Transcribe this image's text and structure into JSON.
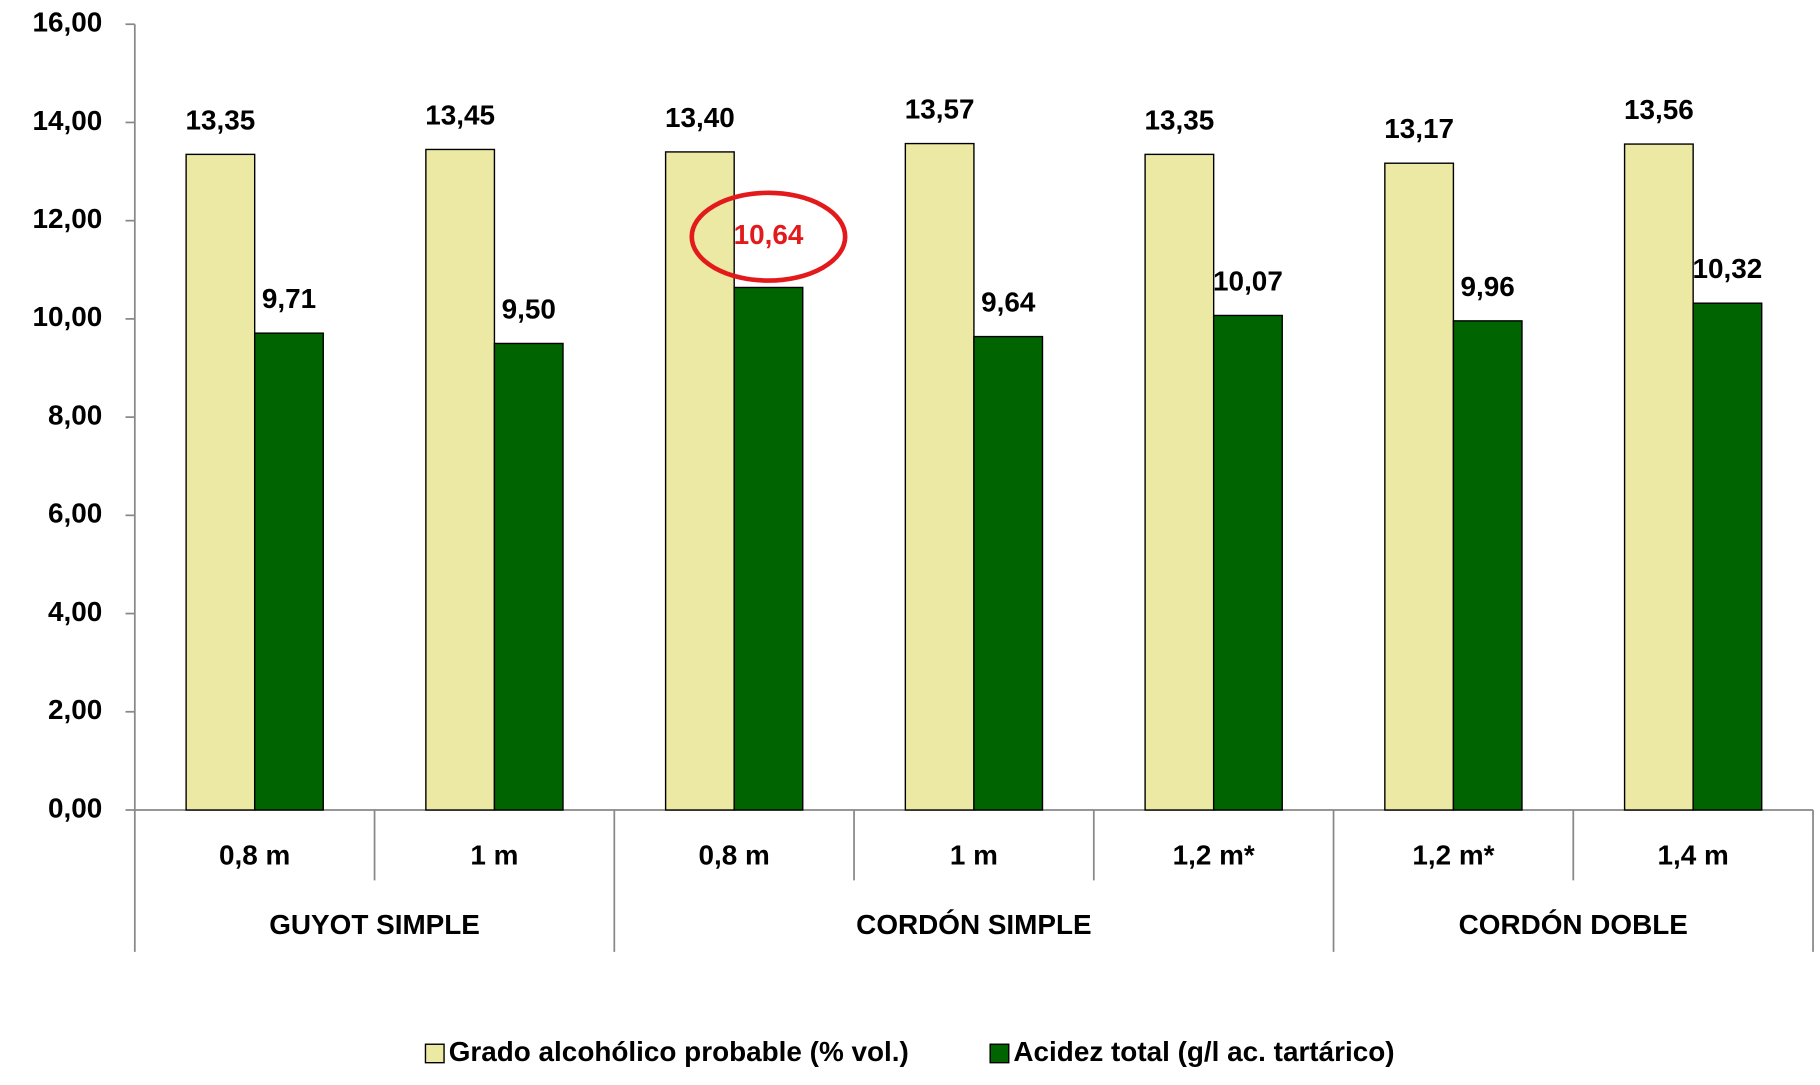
{
  "chart_data": {
    "type": "bar",
    "categories": [
      "0,8 m",
      "1 m",
      "0,8 m",
      "1 m",
      "1,2 m*",
      "1,2 m*",
      "1,4 m"
    ],
    "groups": [
      {
        "label": "GUYOT SIMPLE",
        "count": 2
      },
      {
        "label": "CORDÓN SIMPLE",
        "count": 3
      },
      {
        "label": "CORDÓN DOBLE",
        "count": 2
      }
    ],
    "series": [
      {
        "name": "Grado alcohólico probable (% vol.)",
        "color": "#ece9a4",
        "values": [
          13.35,
          13.45,
          13.4,
          13.57,
          13.35,
          13.17,
          13.56
        ],
        "value_labels": [
          "13,35",
          "13,45",
          "13,40",
          "13,57",
          "13,35",
          "13,17",
          "13,56"
        ]
      },
      {
        "name": "Acidez total (g/l ac. tartárico)",
        "color": "#006400",
        "values": [
          9.71,
          9.5,
          10.64,
          9.64,
          10.07,
          9.96,
          10.32
        ],
        "value_labels": [
          "9,71",
          "9,50",
          "10,64",
          "9,64",
          "10,07",
          "9,96",
          "10,32"
        ]
      }
    ],
    "highlight": {
      "series": 1,
      "index": 2,
      "color": "#e31a1c"
    },
    "ylim": [
      0,
      16
    ],
    "yticks": [
      {
        "value": 0,
        "label": "0,00"
      },
      {
        "value": 2,
        "label": "2,00"
      },
      {
        "value": 4,
        "label": "4,00"
      },
      {
        "value": 6,
        "label": "6,00"
      },
      {
        "value": 8,
        "label": "8,00"
      },
      {
        "value": 10,
        "label": "10,00"
      },
      {
        "value": 12,
        "label": "12,00"
      },
      {
        "value": 14,
        "label": "14,00"
      },
      {
        "value": 16,
        "label": "16,00"
      }
    ],
    "legend": "bottom"
  }
}
